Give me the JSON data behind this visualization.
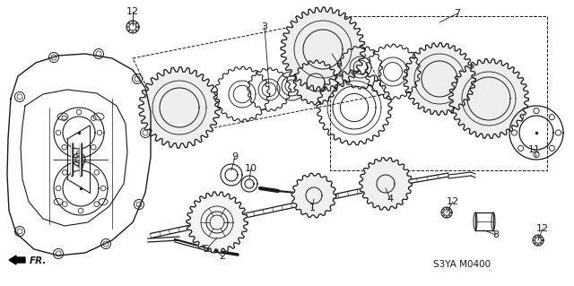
{
  "diagram_code": "S3YA M0400",
  "background_color": "#ffffff",
  "line_color": "#1a1a1a",
  "figsize": [
    6.4,
    3.19
  ],
  "dpi": 100
}
